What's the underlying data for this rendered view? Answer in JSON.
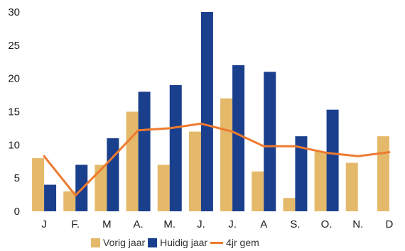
{
  "chart_data": {
    "type": "bar",
    "title": "",
    "xlabel": "",
    "ylabel": "",
    "ylim": [
      0,
      30
    ],
    "yticks": [
      0,
      5,
      10,
      15,
      20,
      25,
      30
    ],
    "grid": false,
    "legend_position": "bottom",
    "categories": [
      "J",
      "F.",
      "M",
      "A.",
      "M.",
      "J.",
      "J.",
      "A",
      "S.",
      "O.",
      "N.",
      "D"
    ],
    "series": [
      {
        "name": "Vorig jaar",
        "kind": "bar",
        "color": "#e5b96a",
        "values": [
          8,
          3,
          7,
          15,
          7,
          12,
          17,
          6,
          2,
          9,
          7.3,
          11.3
        ]
      },
      {
        "name": "Huidig jaar",
        "kind": "bar",
        "color": "#1a3f8c",
        "values": [
          4,
          7,
          11,
          18,
          19,
          30,
          22,
          21,
          11.3,
          15.3,
          null,
          null
        ]
      },
      {
        "name": "4 jr gem",
        "kind": "line",
        "color": "#ee7a2e",
        "values": [
          8.3,
          2.4,
          7.2,
          12.2,
          12.5,
          13.2,
          12,
          9.8,
          9.8,
          8.8,
          8.3,
          8.9
        ]
      }
    ]
  },
  "legend": {
    "vorig_label": "Vorig jaar",
    "huidig_label": "Huidig jaar",
    "gem_label": "4jr gem"
  }
}
